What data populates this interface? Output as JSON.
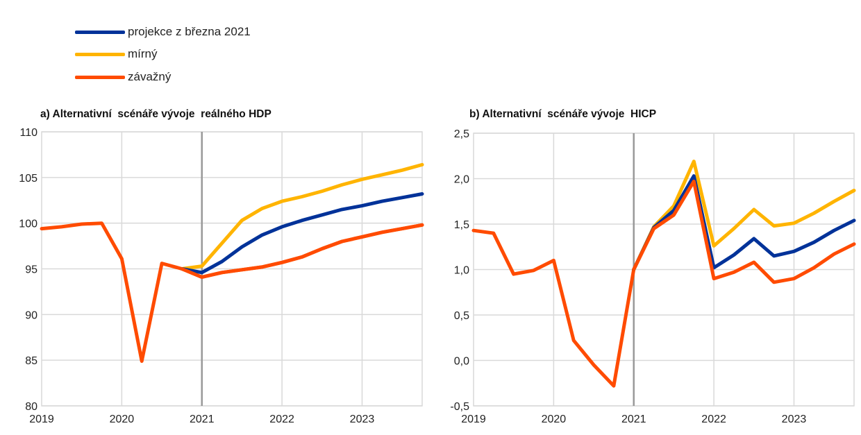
{
  "legend": [
    {
      "label": "projekce z března 2021",
      "color": "#003299"
    },
    {
      "label": "mírný",
      "color": "#FFB400"
    },
    {
      "label": "závažný",
      "color": "#FF4B00"
    }
  ],
  "chart_data": [
    {
      "type": "line",
      "title": "a) Alternativní  scénáře vývoje  reálného HDP",
      "x_start": 2019,
      "step": 0.25,
      "xticks": [
        "2019",
        "2020",
        "2021",
        "2022",
        "2023"
      ],
      "yticks": [
        "80",
        "85",
        "90",
        "95",
        "100",
        "105",
        "110"
      ],
      "ylim": [
        80,
        110
      ],
      "vline": 2021,
      "series": [
        {
          "name": "závažný",
          "color": "#FF4B00",
          "start_index": 0,
          "values": [
            99.4,
            99.6,
            99.9,
            100.0,
            96.1,
            84.9,
            95.6,
            95.0,
            94.1,
            94.6,
            94.9,
            95.2,
            95.7,
            96.3,
            97.2,
            98.0,
            98.5,
            99.0,
            99.4,
            99.8
          ]
        },
        {
          "name": "mírný",
          "color": "#FFB400",
          "start_index": 7,
          "values": [
            95.0,
            95.3,
            97.8,
            100.3,
            101.6,
            102.4,
            102.9,
            103.5,
            104.2,
            104.8,
            105.3,
            105.8,
            106.4
          ]
        },
        {
          "name": "projekce z března 2021",
          "color": "#003299",
          "start_index": 7,
          "values": [
            95.0,
            94.6,
            95.8,
            97.4,
            98.7,
            99.6,
            100.3,
            100.9,
            101.5,
            101.9,
            102.4,
            102.8,
            103.2
          ]
        },
        {
          "name": "závažný",
          "color": "#FF4B00",
          "start_index": 7,
          "values": [
            95.0,
            94.1,
            94.6,
            94.9,
            95.2,
            95.7,
            96.3,
            97.2,
            98.0,
            98.5,
            99.0,
            99.4,
            99.8
          ]
        }
      ]
    },
    {
      "type": "line",
      "title": "b) Alternativní  scénáře vývoje  HICP",
      "x_start": 2019,
      "step": 0.25,
      "xticks": [
        "2019",
        "2020",
        "2021",
        "2022",
        "2023"
      ],
      "yticks": [
        "-0,5",
        "0,0",
        "0,5",
        "1,0",
        "1,5",
        "2,0",
        "2,5"
      ],
      "ylim": [
        -0.5,
        2.5
      ],
      "vline": 2021,
      "series": [
        {
          "name": "závažný",
          "color": "#FF4B00",
          "start_index": 0,
          "values": [
            1.43,
            1.4,
            0.95,
            0.99,
            1.1,
            0.22,
            -0.05,
            -0.28,
            1.0
          ]
        },
        {
          "name": "mírný",
          "color": "#FFB400",
          "start_index": 8,
          "values": [
            1.0,
            1.47,
            1.7,
            2.19,
            1.26,
            1.45,
            1.66,
            1.48,
            1.51,
            1.62,
            1.75,
            1.87
          ]
        },
        {
          "name": "projekce z března 2021",
          "color": "#003299",
          "start_index": 8,
          "values": [
            1.0,
            1.46,
            1.65,
            2.03,
            1.02,
            1.16,
            1.34,
            1.15,
            1.2,
            1.3,
            1.43,
            1.54
          ]
        },
        {
          "name": "závažný",
          "color": "#FF4B00",
          "start_index": 8,
          "values": [
            1.0,
            1.45,
            1.6,
            1.97,
            0.9,
            0.97,
            1.08,
            0.86,
            0.9,
            1.02,
            1.17,
            1.28
          ]
        }
      ]
    }
  ]
}
